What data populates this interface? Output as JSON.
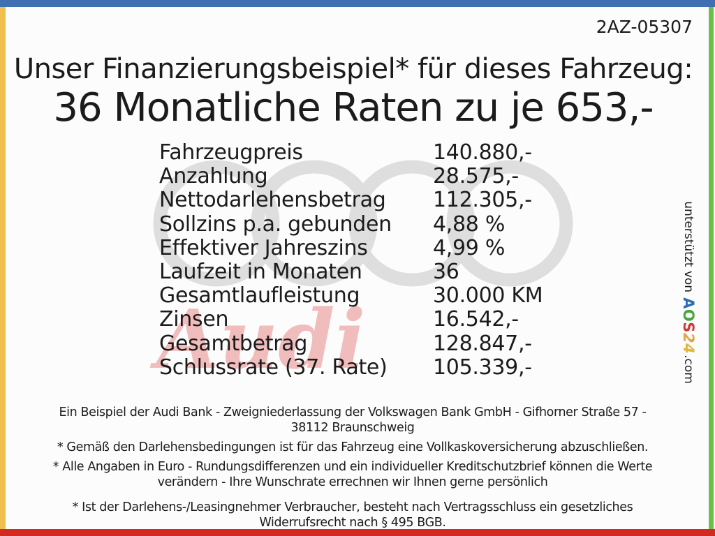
{
  "doc_code": "2AZ-05307",
  "header": {
    "title": "Unser Finanzierungsbeispiel* für dieses Fahrzeug:",
    "subtitle": "36 Monatliche Raten zu je 653,-"
  },
  "financing_table": {
    "rows": [
      {
        "label": "Fahrzeugpreis",
        "value": "140.880,-"
      },
      {
        "label": "Anzahlung",
        "value": "28.575,-"
      },
      {
        "label": "Nettodarlehensbetrag",
        "value": "112.305,-"
      },
      {
        "label": "Sollzins p.a. gebunden",
        "value": "4,88 %"
      },
      {
        "label": "Effektiver Jahreszins",
        "value": "4,99 %"
      },
      {
        "label": "Laufzeit in Monaten",
        "value": "36"
      },
      {
        "label": "Gesamtlaufleistung",
        "value": "30.000 KM"
      },
      {
        "label": "Zinsen",
        "value": "16.542,-"
      },
      {
        "label": "Gesamtbetrag",
        "value": "128.847,-"
      },
      {
        "label": "Schlussrate (37. Rate)",
        "value": "105.339,-"
      }
    ]
  },
  "watermark": {
    "rings_icon": "audi-rings-icon",
    "script_text": "Audi"
  },
  "footer": {
    "paragraphs": [
      [
        "Ein Beispiel der Audi Bank -  Zweigniederlassung der Volkswagen Bank GmbH - Gifhorner Straße 57 -",
        "38112 Braunschweig"
      ],
      [
        "* Gemäß den Darlehensbedingungen ist für das Fahrzeug eine Vollkaskoversicherung abzuschließen."
      ],
      [
        "* Alle Angaben in Euro - Rundungsdifferenzen und ein individueller Kreditschutzbrief können die Werte",
        "verändern - Ihre Wunschrate errechnen wir Ihnen gerne persönlich"
      ],
      [
        "* Ist der Darlehens-/Leasingnehmer Verbraucher, besteht nach Vertragsschluss ein gesetzliches",
        "Widerrufsrecht nach § 495 BGB."
      ]
    ]
  },
  "credit": {
    "prefix": "unterstützt von",
    "brand_letters": [
      {
        "char": "A",
        "color": "#2d6cb5",
        "slant": false
      },
      {
        "char": "O",
        "color": "#4aa43e",
        "slant": false
      },
      {
        "char": "S",
        "color": "#d03a34",
        "slant": false
      },
      {
        "char": "2",
        "color": "#e2a43c",
        "slant": true
      },
      {
        "char": "4",
        "color": "#e0b73b",
        "slant": true
      }
    ],
    "suffix": ".com"
  },
  "colors": {
    "top_bar": "#4070b2",
    "left_stripe": "#f1bf4e",
    "right_stripe": "#69bf48",
    "bottom_bar": "#d3291f",
    "rings": "#dedede",
    "script_watermark": "#f1bcbc",
    "text": "#1b1b1b"
  }
}
